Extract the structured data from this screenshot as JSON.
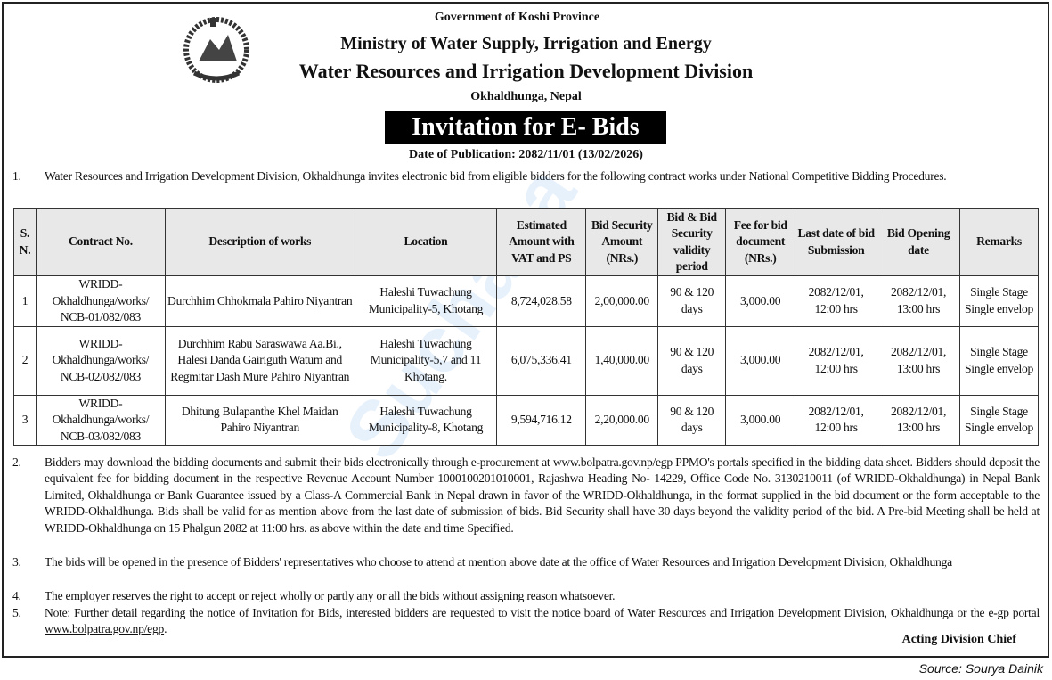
{
  "header": {
    "government": "Government of Koshi Province",
    "ministry": "Ministry of Water Supply, Irrigation and Energy",
    "division": "Water Resources and Irrigation Development Division",
    "location": "Okhaldhunga, Nepal",
    "title": "Invitation for E- Bids",
    "publication_date": "Date of Publication: 2082/11/01 (13/02/2026)",
    "emblem_icon": "nepal-government-emblem"
  },
  "paragraphs": [
    {
      "num": "1.",
      "text": "Water Resources and Irrigation Development Division, Okhaldhunga invites electronic bid from eligible bidders for the following contract works under National Competitive Bidding Procedures."
    }
  ],
  "table": {
    "headers": [
      "S. N.",
      "Contract No.",
      "Description of works",
      "Location",
      "Estimated Amount with VAT and PS",
      "Bid Security Amount (NRs.)",
      "Bid & Bid Security validity period",
      "Fee for bid document (NRs.)",
      "Last date of bid Submission",
      "Bid Opening date",
      "Remarks"
    ],
    "rows": [
      [
        "1",
        "WRIDD-Okhaldhunga/works/ NCB-01/082/083",
        "Durchhim Chhokmala Pahiro Niyantran",
        "Haleshi Tuwachung Municipality-5, Khotang",
        "8,724,028.58",
        "2,00,000.00",
        "90 & 120 days",
        "3,000.00",
        "2082/12/01, 12:00 hrs",
        "2082/12/01, 13:00 hrs",
        "Single Stage Single envelop"
      ],
      [
        "2",
        "WRIDD-Okhaldhunga/works/ NCB-02/082/083",
        "Durchhim Rabu Saraswawa Aa.Bi., Halesi Danda Gairiguth Watum and Regmitar Dash Mure Pahiro Niyantran",
        "Haleshi Tuwachung Municipality-5,7 and 11 Khotang.",
        "6,075,336.41",
        "1,40,000.00",
        "90 & 120 days",
        "3,000.00",
        "2082/12/01, 12:00 hrs",
        "2082/12/01, 13:00 hrs",
        "Single Stage Single envelop"
      ],
      [
        "3",
        "WRIDD-Okhaldhunga/works/ NCB-03/082/083",
        "Dhitung Bulapanthe Khel Maidan Pahiro Niyantran",
        "Haleshi Tuwachung Municipality-8, Khotang",
        "9,594,716.12",
        "2,20,000.00",
        "90 & 120 days",
        "3,000.00",
        "2082/12/01, 12:00 hrs",
        "2082/12/01, 13:00 hrs",
        "Single Stage Single envelop"
      ]
    ]
  },
  "notes": [
    {
      "num": "2.",
      "text": "Bidders may download the bidding documents and submit their bids electronically through e-procurement at www.bolpatra.gov.np/egp PPMO's portals specified in the bidding data sheet. Bidders should deposit the equivalent fee for bidding document in the respective Revenue Account Number 1000100201010001, Rajashwa Heading No- 14229, Office Code No. 3130210011 (of WRIDD-Okhaldhunga) in Nepal Bank Limited, Okhaldhunga or Bank Guarantee issued by a Class-A Commercial Bank in Nepal drawn in favor of the WRIDD-Okhaldhunga, in the format supplied in the bid document or the form acceptable to the WRIDD-Okhaldhunga. Bids shall be valid for as mention above from the last date of submission of bids. Bid Security shall have 30 days beyond the validity period of the bid. A Pre-bid Meeting shall be held at WRIDD-Okhaldhunga on 15 Phalgun 2082 at 11:00 hrs. as above within the date and time Specified."
    },
    {
      "num": "3.",
      "text": "The bids will be opened in the presence of Bidders' representatives who choose to attend at mention above date at the office of Water Resources and Irrigation Development Division, Okhaldhunga"
    },
    {
      "num": "4.",
      "text": "The employer reserves the right to accept or reject wholly or partly any or all the bids without assigning reason whatsoever."
    },
    {
      "num": "5.",
      "text": "Note: Further detail regarding the notice of Invitation for Bids, interested bidders are requested to visit the notice board of Water Resources and Irrigation Development Division, Okhaldhunga or the e-gp portal ",
      "link": "www.bolpatra.gov.np/egp",
      "after": "."
    }
  ],
  "signature": "Acting Division Chief",
  "source": "Source: Sourya Dainik",
  "watermark": "Suchana"
}
